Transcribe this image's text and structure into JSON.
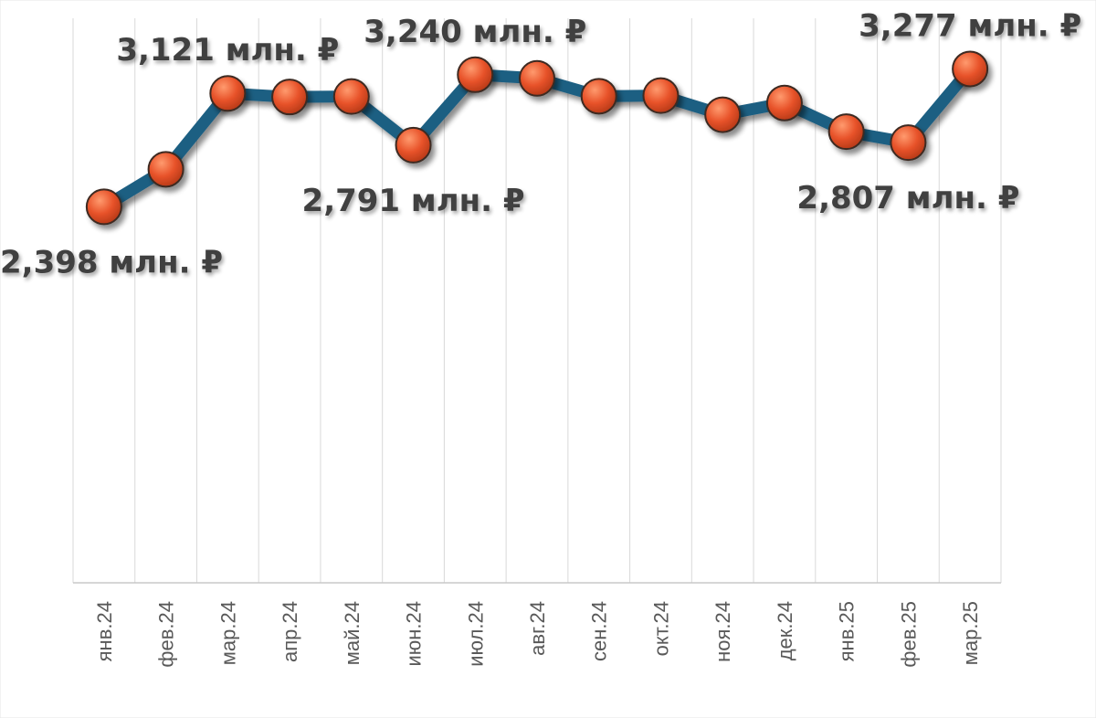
{
  "colors": {
    "line": "#1f5f82",
    "marker": "#e8532a",
    "marker_highlight": "#ff9a6e",
    "gridline": "#d9d9d9",
    "label_text": "#404040",
    "tick_text": "#595959",
    "background": "#ffffff"
  },
  "chart_data": {
    "type": "line",
    "title": "",
    "xlabel": "",
    "ylabel": "",
    "categories": [
      "янв.24",
      "фев.24",
      "мар.24",
      "апр.24",
      "май.24",
      "июн.24",
      "июл.24",
      "авг.24",
      "сен.24",
      "окт.24",
      "ноя.24",
      "дек.24",
      "янв.25",
      "фев.25",
      "мар.25"
    ],
    "series": [
      {
        "values": [
          2.398,
          2.637,
          3.121,
          3.098,
          3.101,
          2.791,
          3.24,
          3.217,
          3.103,
          3.107,
          2.985,
          3.06,
          2.877,
          2.807,
          3.277
        ]
      }
    ],
    "data_labels": [
      {
        "index": 0,
        "text": "2,398 млн. ₽",
        "position": "below"
      },
      {
        "index": 2,
        "text": "3,121 млн. ₽",
        "position": "above"
      },
      {
        "index": 5,
        "text": "2,791 млн. ₽",
        "position": "below"
      },
      {
        "index": 6,
        "text": "3,240 млн. ₽",
        "position": "above"
      },
      {
        "index": 13,
        "text": "2,807 млн. ₽",
        "position": "below"
      },
      {
        "index": 14,
        "text": "3,277 млн. ₽",
        "position": "above"
      }
    ],
    "ylim": [
      0,
      3.6
    ],
    "y_axis_visible": false,
    "grid": "vertical",
    "legend": "none",
    "markers": true
  }
}
